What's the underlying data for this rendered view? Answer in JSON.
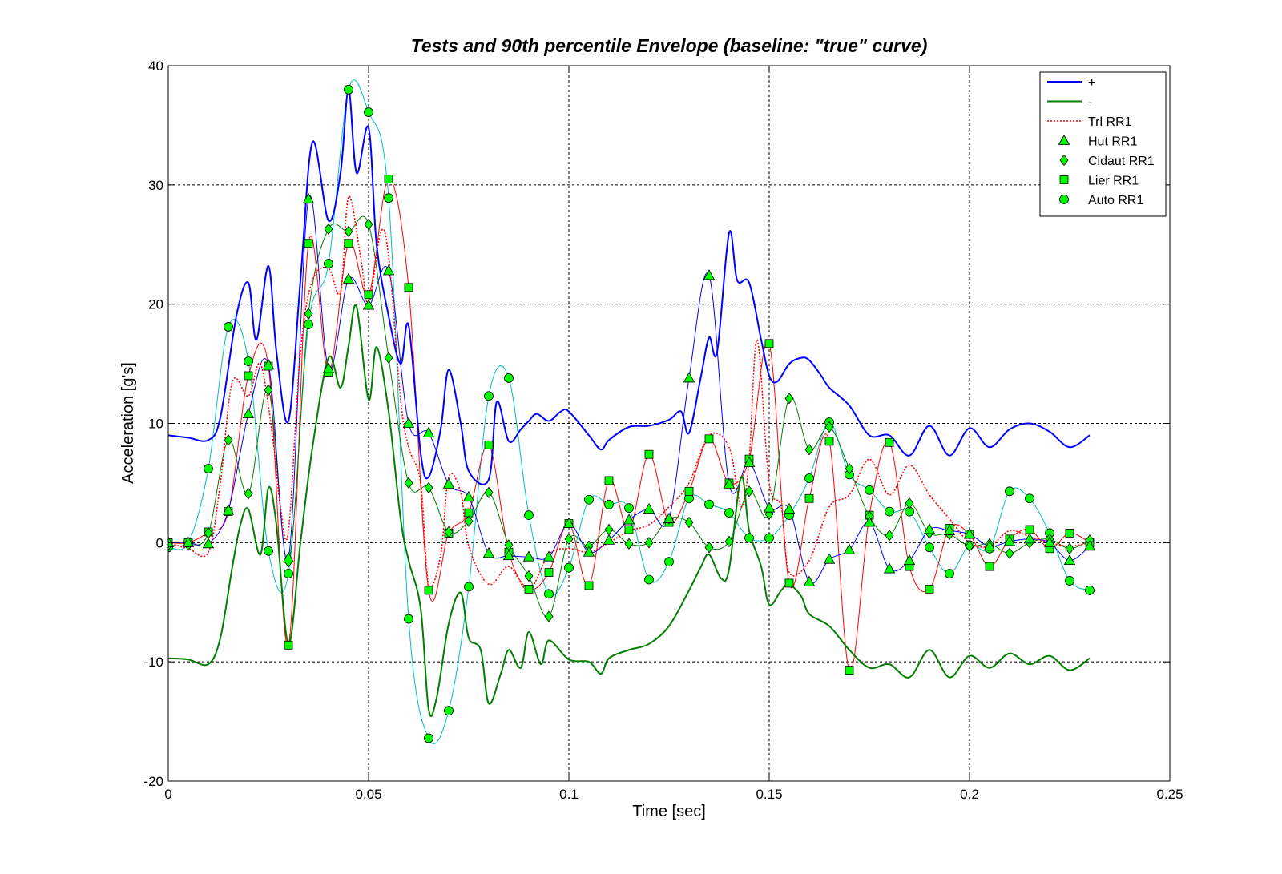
{
  "chart_data": {
    "type": "line",
    "title": "Tests and 90th percentile Envelope (baseline: \"true\" curve)",
    "xlabel": "Time [sec]",
    "ylabel": "Acceleration [g's]",
    "xlim": [
      0,
      0.25
    ],
    "ylim": [
      -20,
      40
    ],
    "xticks": [
      0,
      0.05,
      0.1,
      0.15,
      0.2,
      0.25
    ],
    "xtick_labels": [
      "0",
      "0.05",
      "0.1",
      "0.15",
      "0.2",
      "0.25"
    ],
    "yticks": [
      -20,
      -10,
      0,
      10,
      20,
      30,
      40
    ],
    "ytick_labels": [
      "-20",
      "-10",
      "0",
      "10",
      "20",
      "30",
      "40"
    ],
    "grid": true,
    "legend_position": "top-right",
    "series": [
      {
        "name": "+",
        "color": "#0000ff",
        "style": "solid",
        "width": 2,
        "marker": "none",
        "x": [
          0,
          0.005,
          0.01,
          0.013,
          0.017,
          0.02,
          0.022,
          0.025,
          0.027,
          0.03,
          0.033,
          0.036,
          0.04,
          0.043,
          0.045,
          0.047,
          0.05,
          0.052,
          0.055,
          0.058,
          0.06,
          0.063,
          0.065,
          0.068,
          0.07,
          0.073,
          0.075,
          0.08,
          0.082,
          0.085,
          0.088,
          0.09,
          0.092,
          0.095,
          0.098,
          0.1,
          0.105,
          0.108,
          0.11,
          0.115,
          0.12,
          0.125,
          0.128,
          0.13,
          0.133,
          0.135,
          0.137,
          0.14,
          0.142,
          0.145,
          0.148,
          0.15,
          0.152,
          0.155,
          0.158,
          0.16,
          0.163,
          0.165,
          0.17,
          0.175,
          0.18,
          0.185,
          0.19,
          0.195,
          0.2,
          0.205,
          0.21,
          0.215,
          0.22,
          0.225,
          0.23
        ],
        "y": [
          9,
          8.8,
          8.6,
          10.5,
          19,
          21.8,
          17,
          23.2,
          16,
          10.2,
          22,
          33.6,
          27,
          31,
          38,
          31,
          34.8,
          25,
          19,
          15,
          18.2,
          7.5,
          5.5,
          9.5,
          14.5,
          10,
          6,
          5.3,
          11.8,
          8.5,
          9.5,
          10.2,
          10.8,
          10.2,
          11,
          11,
          9,
          7.8,
          8.6,
          9.7,
          9.8,
          10.3,
          11,
          9.2,
          14,
          17.2,
          16,
          26,
          22,
          21.8,
          17,
          14,
          13.5,
          15,
          15.5,
          15.3,
          14,
          13,
          11.5,
          9,
          9,
          7.3,
          9.8,
          7.3,
          9.6,
          8,
          9.5,
          10,
          9.3,
          8,
          9
        ]
      },
      {
        "name": "-",
        "color": "#007f00",
        "style": "solid",
        "width": 2,
        "marker": "none",
        "x": [
          0,
          0.005,
          0.01,
          0.013,
          0.016,
          0.018,
          0.02,
          0.023,
          0.025,
          0.027,
          0.03,
          0.033,
          0.036,
          0.04,
          0.043,
          0.045,
          0.047,
          0.05,
          0.052,
          0.055,
          0.058,
          0.06,
          0.063,
          0.065,
          0.067,
          0.07,
          0.073,
          0.075,
          0.078,
          0.08,
          0.083,
          0.085,
          0.088,
          0.09,
          0.093,
          0.095,
          0.1,
          0.105,
          0.108,
          0.11,
          0.115,
          0.12,
          0.125,
          0.13,
          0.133,
          0.135,
          0.138,
          0.14,
          0.143,
          0.145,
          0.148,
          0.15,
          0.153,
          0.155,
          0.158,
          0.16,
          0.165,
          0.17,
          0.175,
          0.18,
          0.185,
          0.19,
          0.195,
          0.2,
          0.205,
          0.21,
          0.215,
          0.22,
          0.225,
          0.23
        ],
        "y": [
          -9.7,
          -9.8,
          -10.2,
          -8,
          -2,
          1.5,
          2.8,
          -1,
          4.6,
          1.5,
          -8.5,
          0,
          8,
          15.5,
          13,
          16.5,
          19.8,
          12,
          16.4,
          11,
          2,
          -1.5,
          -5.5,
          -14,
          -13,
          -6.8,
          -4.2,
          -8,
          -9,
          -13.5,
          -11,
          -9,
          -10.5,
          -7.5,
          -10.2,
          -8.2,
          -9.8,
          -10,
          -11,
          -9.7,
          -9,
          -8.5,
          -7,
          -4,
          -2,
          -1,
          -3,
          -2.2,
          5.5,
          1,
          -2,
          -5.2,
          -4,
          -3.5,
          -4.5,
          -6,
          -7,
          -9,
          -10.5,
          -10.2,
          -11.3,
          -9,
          -11.3,
          -9.5,
          -10.5,
          -9.3,
          -10.2,
          -9.5,
          -10.7,
          -9.7
        ]
      },
      {
        "name": "Trl RR1",
        "color": "#ff0000",
        "style": "dotted",
        "width": 1.6,
        "marker": "none",
        "x": [
          0,
          0.005,
          0.01,
          0.013,
          0.016,
          0.02,
          0.023,
          0.026,
          0.028,
          0.03,
          0.033,
          0.036,
          0.04,
          0.043,
          0.045,
          0.048,
          0.05,
          0.053,
          0.055,
          0.058,
          0.06,
          0.063,
          0.065,
          0.068,
          0.07,
          0.073,
          0.075,
          0.08,
          0.085,
          0.09,
          0.095,
          0.1,
          0.105,
          0.11,
          0.115,
          0.12,
          0.125,
          0.13,
          0.135,
          0.14,
          0.143,
          0.145,
          0.147,
          0.15,
          0.153,
          0.155,
          0.16,
          0.165,
          0.17,
          0.175,
          0.18,
          0.185,
          0.19,
          0.195,
          0.2,
          0.205,
          0.21,
          0.215,
          0.22,
          0.225,
          0.23
        ],
        "y": [
          0,
          -0.5,
          -0.8,
          5,
          13.5,
          12.3,
          15,
          9,
          3,
          1,
          16,
          22,
          23,
          21,
          29,
          24,
          20,
          26,
          24,
          12,
          8,
          5,
          -3.5,
          -1,
          5.5,
          4.2,
          -0.3,
          -3.5,
          -2,
          -4,
          -1,
          -0.5,
          -0.8,
          0,
          1,
          1.5,
          3,
          5,
          9,
          8,
          3,
          7,
          17,
          5,
          3,
          -2.5,
          -1.5,
          3,
          4,
          7,
          4,
          6.5,
          4,
          2,
          0,
          -0.3,
          1,
          0.5,
          0,
          -0.3,
          0
        ]
      },
      {
        "name": "Hut RR1",
        "color": "#0000ff",
        "style": "solid",
        "width": 1,
        "marker": "triangle",
        "x": [
          0,
          0.005,
          0.01,
          0.015,
          0.02,
          0.025,
          0.03,
          0.035,
          0.04,
          0.045,
          0.05,
          0.055,
          0.06,
          0.065,
          0.07,
          0.075,
          0.08,
          0.085,
          0.09,
          0.095,
          0.1,
          0.105,
          0.11,
          0.115,
          0.12,
          0.125,
          0.13,
          0.135,
          0.14,
          0.145,
          0.15,
          0.155,
          0.16,
          0.165,
          0.17,
          0.175,
          0.18,
          0.185,
          0.19,
          0.195,
          0.2,
          0.205,
          0.21,
          0.215,
          0.22,
          0.225,
          0.23
        ],
        "y": [
          0,
          0,
          -0.1,
          2.7,
          10.8,
          14.9,
          -1.3,
          28.8,
          14.6,
          22.1,
          19.9,
          22.8,
          10,
          9.2,
          4.9,
          3.8,
          -0.9,
          -1.1,
          -1.2,
          -1.2,
          1.6,
          -0.8,
          0.2,
          1.9,
          2.8,
          2,
          13.8,
          22.4,
          4.9,
          6.7,
          2.9,
          2.8,
          -3.3,
          -1.4,
          -0.6,
          1.7,
          -2.2,
          -1.5,
          1.1,
          1,
          0.7,
          -0.3,
          0.1,
          0.3,
          0,
          -1.5,
          -0.3
        ]
      },
      {
        "name": "Cidaut RR1",
        "color": "#007f00",
        "style": "solid",
        "width": 1,
        "marker": "diamond",
        "x": [
          0,
          0.005,
          0.01,
          0.015,
          0.02,
          0.025,
          0.03,
          0.035,
          0.04,
          0.045,
          0.05,
          0.055,
          0.06,
          0.065,
          0.07,
          0.075,
          0.08,
          0.085,
          0.09,
          0.095,
          0.1,
          0.105,
          0.11,
          0.115,
          0.12,
          0.125,
          0.13,
          0.135,
          0.14,
          0.145,
          0.15,
          0.155,
          0.16,
          0.165,
          0.17,
          0.175,
          0.18,
          0.185,
          0.19,
          0.195,
          0.2,
          0.205,
          0.21,
          0.215,
          0.22,
          0.225,
          0.23
        ],
        "y": [
          -0.2,
          -0.2,
          0.8,
          8.6,
          4.1,
          12.8,
          -1.6,
          19.2,
          26.3,
          26.1,
          26.7,
          15.5,
          5,
          4.6,
          0.9,
          1.8,
          4.2,
          -0.2,
          -2.8,
          -6.2,
          0.3,
          -0.3,
          1.1,
          -0.1,
          0,
          2,
          1.7,
          -0.4,
          0.1,
          4.3,
          2.4,
          12.1,
          7.8,
          9.7,
          6.2,
          2.2,
          0.6,
          3.3,
          0.8,
          0.7,
          -0.3,
          -0.1,
          -0.9,
          0,
          0.3,
          -0.5,
          0.2
        ]
      },
      {
        "name": "Lier RR1",
        "color": "#ff0000",
        "style": "solid",
        "width": 1,
        "marker": "square",
        "x": [
          0,
          0.005,
          0.01,
          0.015,
          0.02,
          0.025,
          0.03,
          0.035,
          0.04,
          0.045,
          0.05,
          0.055,
          0.06,
          0.065,
          0.07,
          0.075,
          0.08,
          0.085,
          0.09,
          0.095,
          0.1,
          0.105,
          0.11,
          0.115,
          0.12,
          0.125,
          0.13,
          0.135,
          0.14,
          0.145,
          0.15,
          0.155,
          0.16,
          0.165,
          0.17,
          0.175,
          0.18,
          0.185,
          0.19,
          0.195,
          0.2,
          0.205,
          0.21,
          0.215,
          0.22,
          0.225,
          0.23
        ],
        "y": [
          0,
          0,
          0.9,
          2.6,
          14,
          14.8,
          -8.6,
          25.1,
          14.3,
          25.1,
          20.8,
          30.5,
          21.4,
          -4,
          0.8,
          2.5,
          8.2,
          -0.8,
          -3.9,
          -2.5,
          1.6,
          -3.6,
          5.2,
          1.1,
          7.4,
          1.7,
          4.3,
          8.7,
          5,
          7,
          16.7,
          -3.4,
          3.7,
          8.5,
          -10.7,
          2.3,
          8.4,
          -2,
          -3.9,
          1.2,
          0.7,
          -2,
          0.3,
          1.1,
          -0.5,
          0.8,
          0
        ]
      },
      {
        "name": "Auto RR1",
        "color": "#00bfbf",
        "style": "solid",
        "width": 1,
        "marker": "circle",
        "x": [
          0,
          0.005,
          0.01,
          0.015,
          0.02,
          0.025,
          0.03,
          0.035,
          0.04,
          0.045,
          0.05,
          0.055,
          0.06,
          0.065,
          0.07,
          0.075,
          0.08,
          0.085,
          0.09,
          0.095,
          0.1,
          0.105,
          0.11,
          0.115,
          0.12,
          0.125,
          0.13,
          0.135,
          0.14,
          0.145,
          0.15,
          0.155,
          0.16,
          0.165,
          0.17,
          0.175,
          0.18,
          0.185,
          0.19,
          0.195,
          0.2,
          0.205,
          0.21,
          0.215,
          0.22,
          0.225,
          0.23
        ],
        "y": [
          -0.4,
          0,
          6.2,
          18.1,
          15.2,
          -0.7,
          -2.6,
          18.3,
          23.4,
          38,
          36.1,
          28.9,
          -6.4,
          -16.4,
          -14.1,
          -3.7,
          12.3,
          13.8,
          2.3,
          -4.3,
          -2.1,
          3.6,
          3.2,
          2.9,
          -3.1,
          -1.6,
          3.7,
          3.2,
          2.5,
          0.4,
          0.4,
          2.3,
          5.4,
          10.1,
          5.7,
          4.4,
          2.6,
          2.6,
          -0.4,
          -2.6,
          -0.2,
          -0.5,
          4.3,
          3.7,
          0.8,
          -3.2,
          -4
        ]
      }
    ]
  }
}
